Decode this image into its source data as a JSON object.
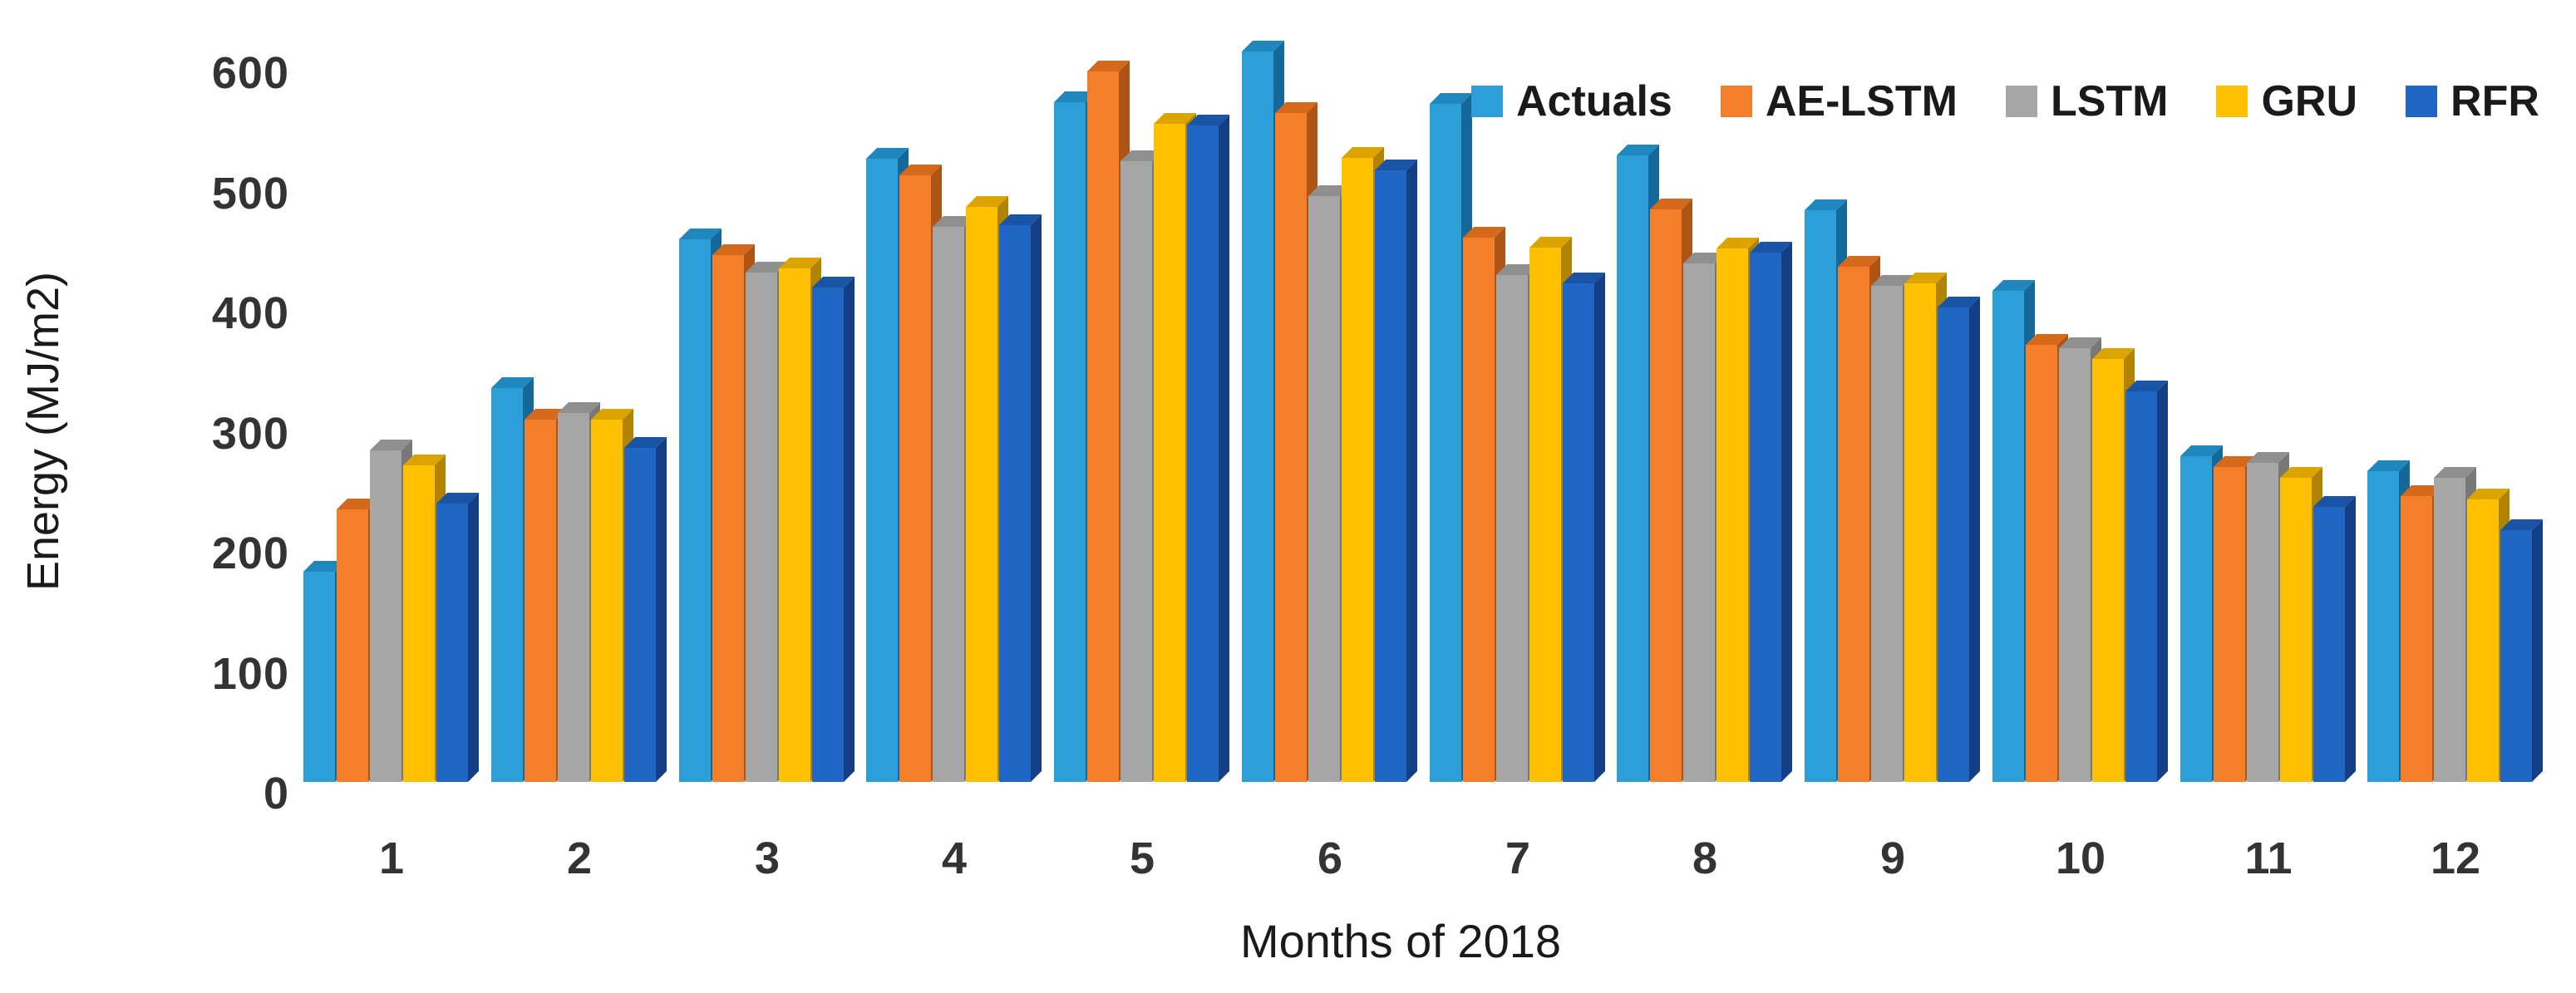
{
  "chart_data": {
    "type": "bar",
    "style": "3d-clustered",
    "title": "",
    "xlabel": "Months of 2018",
    "ylabel": "Energy (MJ/m2)",
    "ylim": [
      0,
      600
    ],
    "yticks": [
      0,
      100,
      200,
      300,
      400,
      500,
      600
    ],
    "grid": false,
    "legend_position": "top-right",
    "categories": [
      "1",
      "2",
      "3",
      "4",
      "5",
      "6",
      "7",
      "8",
      "9",
      "10",
      "11",
      "12"
    ],
    "series": [
      {
        "name": "Actuals",
        "color": "#2D9FD8",
        "color_top": "#1F86BE",
        "color_side": "#14699A",
        "values": [
          175,
          328,
          452,
          519,
          566,
          608,
          565,
          522,
          476,
          409,
          271,
          259
        ]
      },
      {
        "name": "AE-LSTM",
        "color": "#F57E2B",
        "color_top": "#D4691C",
        "color_side": "#AE5415",
        "values": [
          227,
          302,
          439,
          505,
          592,
          557,
          453,
          477,
          429,
          364,
          262,
          238
        ]
      },
      {
        "name": "LSTM",
        "color": "#A6A6A6",
        "color_top": "#8F8F8F",
        "color_side": "#787878",
        "values": [
          276,
          307,
          424,
          462,
          517,
          488,
          422,
          432,
          413,
          361,
          266,
          253
        ]
      },
      {
        "name": "GRU",
        "color": "#FFC001",
        "color_top": "#DBA400",
        "color_side": "#B08400",
        "values": [
          264,
          302,
          428,
          479,
          548,
          520,
          445,
          444,
          415,
          352,
          253,
          235
        ]
      },
      {
        "name": "RFR",
        "color": "#2066C4",
        "color_top": "#1A54A5",
        "color_side": "#143F85",
        "values": [
          232,
          278,
          412,
          464,
          547,
          509,
          415,
          441,
          395,
          325,
          229,
          210
        ]
      }
    ]
  }
}
